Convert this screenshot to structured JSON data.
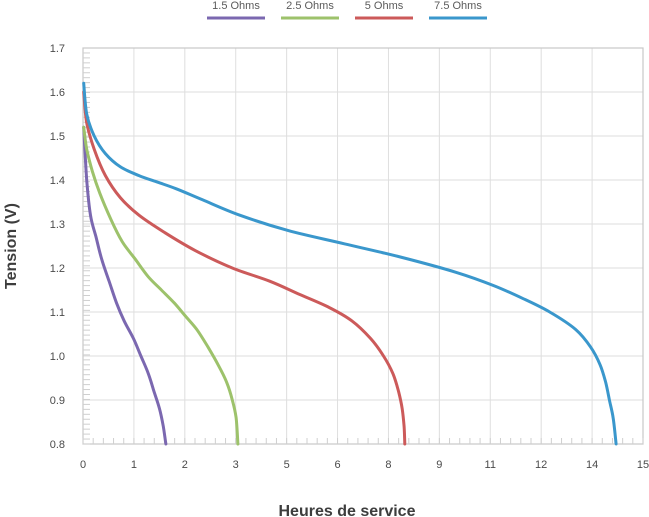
{
  "chart_data": {
    "type": "line",
    "xlabel": "Heures de service",
    "ylabel": "Tension (V)",
    "xlim": [
      0,
      15
    ],
    "ylim": [
      0.8,
      1.7
    ],
    "x_tick_labels": [
      "0",
      "1",
      "2",
      "3",
      "5",
      "6",
      "8",
      "9",
      "11",
      "12",
      "14",
      "15"
    ],
    "y_tick_labels": [
      "0.8",
      "0.9",
      "1.0",
      "1.1",
      "1.2",
      "1.3",
      "1.4",
      "1.5",
      "1.6",
      "1.7"
    ],
    "y_tick_values": [
      0.8,
      0.9,
      1.0,
      1.1,
      1.2,
      1.3,
      1.4,
      1.5,
      1.6,
      1.7
    ],
    "grid": true,
    "legend_position": "top-center",
    "series": [
      {
        "name": "1.5 Ohms",
        "color": "#7b68b0",
        "points": [
          [
            0.02,
            1.52
          ],
          [
            0.1,
            1.4
          ],
          [
            0.2,
            1.32
          ],
          [
            0.35,
            1.27
          ],
          [
            0.5,
            1.22
          ],
          [
            0.7,
            1.17
          ],
          [
            0.9,
            1.12
          ],
          [
            1.1,
            1.08
          ],
          [
            1.35,
            1.04
          ],
          [
            1.55,
            1.0
          ],
          [
            1.75,
            0.96
          ],
          [
            1.9,
            0.92
          ],
          [
            2.05,
            0.88
          ],
          [
            2.15,
            0.84
          ],
          [
            2.22,
            0.8
          ]
        ]
      },
      {
        "name": "2.5 Ohms",
        "color": "#9dc26b",
        "points": [
          [
            0.02,
            1.52
          ],
          [
            0.1,
            1.47
          ],
          [
            0.25,
            1.42
          ],
          [
            0.45,
            1.37
          ],
          [
            0.75,
            1.31
          ],
          [
            1.05,
            1.26
          ],
          [
            1.4,
            1.22
          ],
          [
            1.75,
            1.18
          ],
          [
            2.1,
            1.15
          ],
          [
            2.45,
            1.12
          ],
          [
            2.75,
            1.09
          ],
          [
            3.05,
            1.06
          ],
          [
            3.35,
            1.02
          ],
          [
            3.62,
            0.98
          ],
          [
            3.85,
            0.94
          ],
          [
            4.0,
            0.9
          ],
          [
            4.1,
            0.86
          ],
          [
            4.15,
            0.8
          ]
        ]
      },
      {
        "name": "5 Ohms",
        "color": "#cc5a5a",
        "points": [
          [
            0.02,
            1.6
          ],
          [
            0.1,
            1.53
          ],
          [
            0.3,
            1.47
          ],
          [
            0.6,
            1.41
          ],
          [
            1.0,
            1.36
          ],
          [
            1.5,
            1.32
          ],
          [
            2.2,
            1.28
          ],
          [
            3.0,
            1.24
          ],
          [
            4.0,
            1.2
          ],
          [
            5.0,
            1.17
          ],
          [
            5.8,
            1.14
          ],
          [
            6.6,
            1.11
          ],
          [
            7.2,
            1.08
          ],
          [
            7.7,
            1.04
          ],
          [
            8.05,
            1.0
          ],
          [
            8.3,
            0.96
          ],
          [
            8.45,
            0.92
          ],
          [
            8.55,
            0.88
          ],
          [
            8.6,
            0.84
          ],
          [
            8.62,
            0.8
          ]
        ]
      },
      {
        "name": "7.5 Ohms",
        "color": "#3a97cc",
        "points": [
          [
            0.02,
            1.62
          ],
          [
            0.1,
            1.55
          ],
          [
            0.3,
            1.5
          ],
          [
            0.6,
            1.46
          ],
          [
            1.0,
            1.43
          ],
          [
            1.5,
            1.41
          ],
          [
            2.0,
            1.395
          ],
          [
            2.5,
            1.38
          ],
          [
            3.2,
            1.355
          ],
          [
            4.2,
            1.32
          ],
          [
            5.5,
            1.285
          ],
          [
            7.0,
            1.255
          ],
          [
            8.5,
            1.225
          ],
          [
            10.0,
            1.19
          ],
          [
            11.0,
            1.16
          ],
          [
            11.8,
            1.13
          ],
          [
            12.5,
            1.1
          ],
          [
            13.2,
            1.06
          ],
          [
            13.6,
            1.02
          ],
          [
            13.85,
            0.98
          ],
          [
            14.0,
            0.94
          ],
          [
            14.1,
            0.9
          ],
          [
            14.2,
            0.86
          ],
          [
            14.28,
            0.8
          ]
        ]
      }
    ]
  }
}
